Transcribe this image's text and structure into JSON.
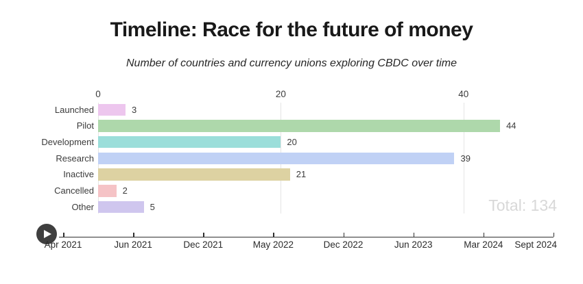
{
  "header": {
    "title": "Timeline: Race for the future of money",
    "subtitle": "Number of countries and currency unions exploring CBDC over time"
  },
  "summary": {
    "total_label": "Total: 134",
    "total_value": 134
  },
  "chart_data": {
    "type": "bar",
    "orientation": "horizontal",
    "title": "Timeline: Race for the future of money",
    "subtitle": "Number of countries and currency unions exploring CBDC over time",
    "categories": [
      "Launched",
      "Pilot",
      "Development",
      "Research",
      "Inactive",
      "Cancelled",
      "Other"
    ],
    "values": [
      3,
      44,
      20,
      39,
      21,
      2,
      5
    ],
    "bar_colors": [
      "#edc6ee",
      "#aed8ab",
      "#9bdeda",
      "#c0d1f5",
      "#ddd2a2",
      "#f5c3c6",
      "#cfc6ee"
    ],
    "value_axis": {
      "position": "top",
      "ticks": [
        0,
        20,
        40
      ],
      "max": 50,
      "grid": true
    },
    "legend_position": "none",
    "total": 134
  },
  "timeline": {
    "labels": [
      "Apr 2021",
      "Jun 2021",
      "Dec 2021",
      "May 2022",
      "Dec 2022",
      "Jun 2023",
      "Mar 2024",
      "Sept 2024"
    ],
    "play_icon": "play-icon"
  },
  "colors": {
    "gridline": "#e4e4e4",
    "axis_text": "#3b3b3b",
    "total_text": "#d8d8d8",
    "timeline_line": "#2f2f2f",
    "play_button": "#3f3f3f",
    "title_text": "#191919"
  }
}
